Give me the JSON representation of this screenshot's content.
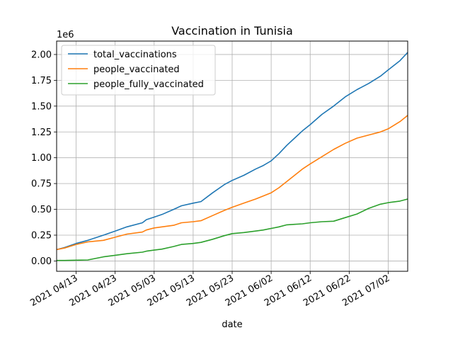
{
  "chart_data": {
    "type": "line",
    "title": "Vaccination in Tunisia",
    "xlabel": "date",
    "ylabel": "",
    "y_multiplier_label": "1e6",
    "x_tick_labels": [
      "2021 04/13",
      "2021 04/23",
      "2021 05/03",
      "2021 05/13",
      "2021 05/23",
      "2021 06/02",
      "2021 06/12",
      "2021 06/22",
      "2021 07/02"
    ],
    "x_tick_dates": [
      "2021-04-13",
      "2021-04-23",
      "2021-05-03",
      "2021-05-13",
      "2021-05-23",
      "2021-06-02",
      "2021-06-12",
      "2021-06-22",
      "2021-07-02"
    ],
    "y_tick_labels": [
      "0.00",
      "0.25",
      "0.50",
      "0.75",
      "1.00",
      "1.25",
      "1.50",
      "1.75",
      "2.00"
    ],
    "y_tick_values": [
      0,
      250000,
      500000,
      750000,
      1000000,
      1250000,
      1500000,
      1750000,
      2000000
    ],
    "xlim": [
      "2021-04-08",
      "2021-07-07"
    ],
    "ylim": [
      -100000,
      2130000
    ],
    "grid": true,
    "legend_position": "top-left",
    "dates": [
      "2021-04-08",
      "2021-04-10",
      "2021-04-13",
      "2021-04-16",
      "2021-04-20",
      "2021-04-23",
      "2021-04-26",
      "2021-04-30",
      "2021-05-01",
      "2021-05-03",
      "2021-05-05",
      "2021-05-08",
      "2021-05-10",
      "2021-05-13",
      "2021-05-15",
      "2021-05-18",
      "2021-05-21",
      "2021-05-23",
      "2021-05-26",
      "2021-05-29",
      "2021-05-31",
      "2021-06-02",
      "2021-06-04",
      "2021-06-06",
      "2021-06-08",
      "2021-06-10",
      "2021-06-12",
      "2021-06-15",
      "2021-06-18",
      "2021-06-21",
      "2021-06-24",
      "2021-06-27",
      "2021-06-30",
      "2021-07-02",
      "2021-07-05",
      "2021-07-07"
    ],
    "series": [
      {
        "name": "total_vaccinations",
        "color": "#1f77b4",
        "values": [
          110000,
          130000,
          170000,
          200000,
          250000,
          290000,
          330000,
          370000,
          400000,
          425000,
          450000,
          500000,
          535000,
          560000,
          575000,
          660000,
          740000,
          780000,
          830000,
          890000,
          925000,
          970000,
          1040000,
          1120000,
          1190000,
          1260000,
          1320000,
          1420000,
          1500000,
          1590000,
          1660000,
          1720000,
          1790000,
          1850000,
          1940000,
          2020000
        ]
      },
      {
        "name": "people_vaccinated",
        "color": "#ff7f0e",
        "values": [
          110000,
          125000,
          160000,
          185000,
          200000,
          230000,
          260000,
          280000,
          300000,
          320000,
          330000,
          345000,
          370000,
          380000,
          390000,
          440000,
          490000,
          520000,
          560000,
          600000,
          630000,
          660000,
          710000,
          770000,
          830000,
          890000,
          940000,
          1010000,
          1080000,
          1140000,
          1190000,
          1220000,
          1250000,
          1280000,
          1350000,
          1410000
        ]
      },
      {
        "name": "people_fully_vaccinated",
        "color": "#2ca02c",
        "values": [
          5000,
          5000,
          8000,
          10000,
          40000,
          55000,
          70000,
          85000,
          95000,
          105000,
          115000,
          140000,
          160000,
          170000,
          180000,
          210000,
          245000,
          265000,
          275000,
          290000,
          300000,
          315000,
          330000,
          350000,
          355000,
          360000,
          370000,
          380000,
          385000,
          420000,
          455000,
          510000,
          550000,
          565000,
          580000,
          600000
        ]
      }
    ]
  }
}
